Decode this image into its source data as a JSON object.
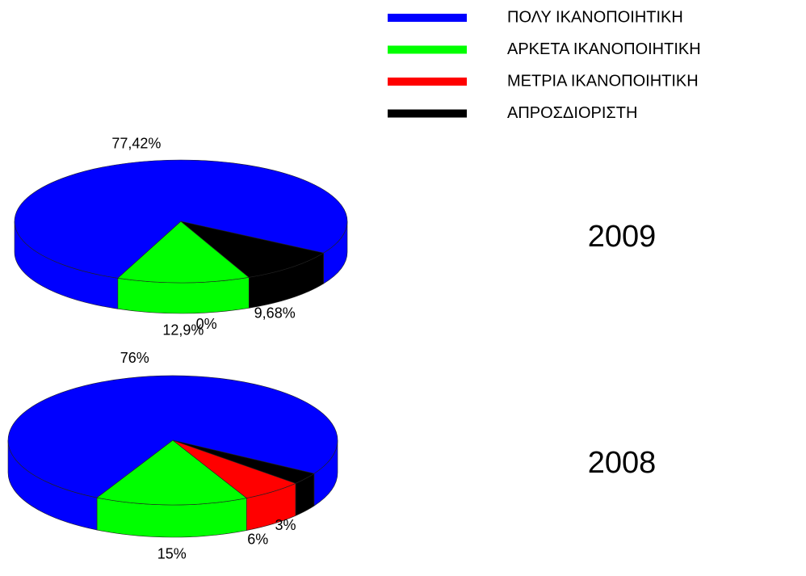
{
  "legend": {
    "names": [
      "ΠΟΛΥ ΙΚΑΝΟΠΟΙΗΤΙΚΗ",
      "ΑΡΚΕΤΑ ΙΚΑΝΟΠΟΙΗΤΙΚΗ",
      "ΜΕΤΡΙΑ ΙΚΑΝΟΠΟΙΗΤΙΚΗ",
      "ΑΠΡΟΣΔΙΟΡΙΣΤΗ"
    ],
    "colors": [
      "#0000ff",
      "#00ff00",
      "#ff0000",
      "#000000"
    ]
  },
  "chart_data": [
    {
      "type": "pie",
      "title": "2009",
      "values": [
        77.42,
        12.9,
        0,
        9.68
      ],
      "value_labels": [
        "77,42%",
        "12,9%",
        "0%",
        "9,68%"
      ]
    },
    {
      "type": "pie",
      "title": "2008",
      "values": [
        76,
        15,
        6,
        3
      ],
      "value_labels": [
        "76%",
        "15%",
        "6%",
        "3%"
      ]
    }
  ]
}
